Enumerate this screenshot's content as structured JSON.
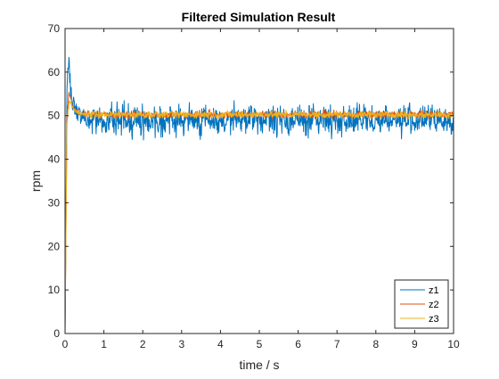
{
  "chart_data": {
    "type": "line",
    "title": "Filtered Simulation Result",
    "xlabel": "time / s",
    "ylabel": "rpm",
    "xlim": [
      0,
      10
    ],
    "ylim": [
      0,
      70
    ],
    "xticks": [
      0,
      1,
      2,
      3,
      4,
      5,
      6,
      7,
      8,
      9,
      10
    ],
    "yticks": [
      0,
      10,
      20,
      30,
      40,
      50,
      60,
      70
    ],
    "grid": false,
    "legend_position": "bottom-right",
    "series": [
      {
        "name": "z1",
        "color": "#0072BD",
        "x": [
          0,
          0.05,
          0.1,
          0.15,
          0.2,
          0.3,
          0.4,
          0.5,
          1,
          2,
          3,
          4,
          5,
          6,
          7,
          8,
          9,
          10
        ],
        "values": [
          0,
          57,
          62,
          55,
          53,
          51,
          50,
          50,
          50,
          50,
          50,
          50,
          50,
          50,
          50,
          50,
          50,
          50
        ],
        "noise_range": [
          44,
          54
        ]
      },
      {
        "name": "z2",
        "color": "#D95319",
        "x": [
          0,
          0.05,
          0.1,
          0.15,
          0.2,
          0.3,
          0.4,
          0.5,
          1,
          2,
          3,
          4,
          5,
          6,
          7,
          8,
          9,
          10
        ],
        "values": [
          0,
          50,
          55,
          54,
          52,
          51,
          50.5,
          50.3,
          50,
          50,
          50,
          50,
          50,
          50,
          50,
          50,
          50,
          50
        ],
        "noise_range": [
          49,
          51.5
        ]
      },
      {
        "name": "z3",
        "color": "#EDB120",
        "x": [
          0,
          0.05,
          0.1,
          0.15,
          0.2,
          0.3,
          0.4,
          0.5,
          1,
          2,
          3,
          4,
          5,
          6,
          7,
          8,
          9,
          10
        ],
        "values": [
          0,
          48,
          53,
          53,
          52,
          51,
          50.5,
          50.3,
          50,
          50,
          50,
          50,
          50,
          50,
          50,
          50,
          50,
          50
        ],
        "noise_range": [
          49,
          51.5
        ]
      }
    ]
  }
}
